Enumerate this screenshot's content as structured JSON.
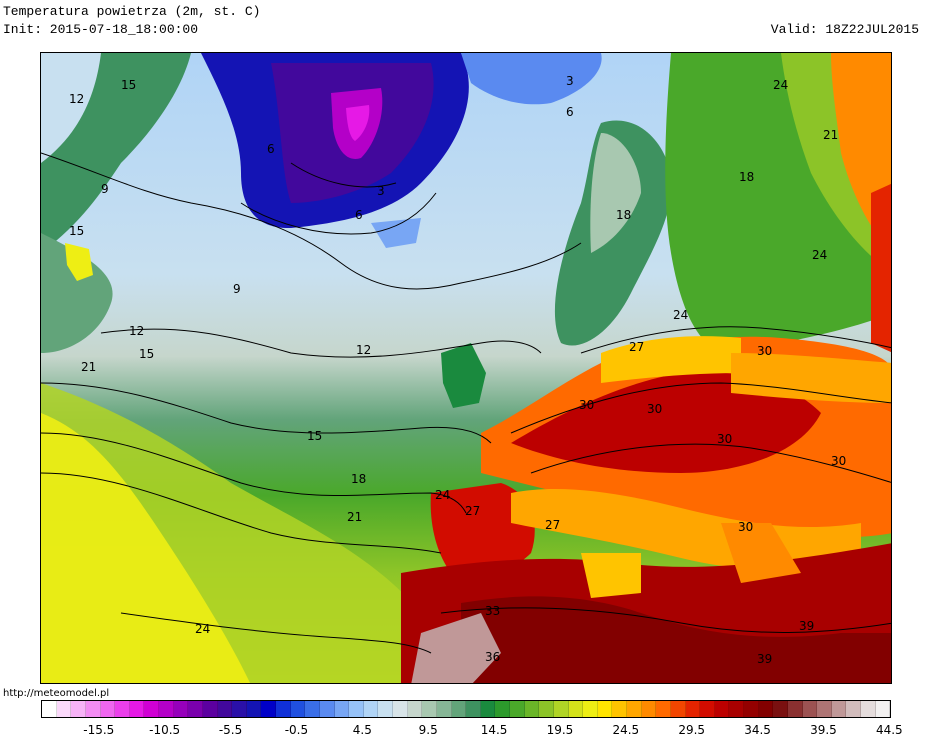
{
  "header": {
    "title": "Temperatura powietrza (2m, st. C)",
    "init": "Init: 2015-07-18_18:00:00",
    "valid": "Valid: 18Z22JUL2015"
  },
  "footer": {
    "url": "http://meteomodel.pl"
  },
  "legend": {
    "tick_labels": [
      "-15.5",
      "-10.5",
      "-5.5",
      "-0.5",
      "4.5",
      "9.5",
      "14.5",
      "19.5",
      "24.5",
      "29.5",
      "34.5",
      "39.5",
      "44.5"
    ],
    "colors": [
      "#ffffff",
      "#fbd9fb",
      "#f7b3f7",
      "#f38cf3",
      "#ef66ef",
      "#eb3feb",
      "#e619e6",
      "#d000d4",
      "#b400c8",
      "#9600bb",
      "#7a00ad",
      "#5c00a0",
      "#42089c",
      "#2a10a8",
      "#1414b4",
      "#0000c8",
      "#1030d8",
      "#2050e0",
      "#3a6ee8",
      "#5a8af0",
      "#78a6f4",
      "#96c2f8",
      "#b0d4f6",
      "#c8e0f0",
      "#d8e4e8",
      "#c6d6cc",
      "#a8c8b0",
      "#86b696",
      "#62a47a",
      "#3e9260",
      "#1a8a3e",
      "#2c9a2c",
      "#4aa82a",
      "#6ab628",
      "#8cc428",
      "#b0d426",
      "#d4e21a",
      "#eeee14",
      "#ffe400",
      "#ffc400",
      "#ffa600",
      "#ff8a00",
      "#ff6a00",
      "#f24600",
      "#e42400",
      "#d20c00",
      "#bc0000",
      "#a80000",
      "#940000",
      "#820000",
      "#7a1010",
      "#8a3030",
      "#9c5252",
      "#ae7474",
      "#c09898",
      "#d2bcbc",
      "#e4dcdc",
      "#f2f0f0"
    ]
  },
  "map": {
    "contour_labels": [
      {
        "text": "12",
        "region": "southwest Greenland coast"
      },
      {
        "text": "15",
        "region": "southern tip of Greenland"
      },
      {
        "text": "9",
        "region": "Labrador Sea"
      },
      {
        "text": "15",
        "region": "Newfoundland"
      },
      {
        "text": "6",
        "region": "East Greenland"
      },
      {
        "text": "3",
        "region": "Greenland ice sheet"
      },
      {
        "text": "6",
        "region": "Denmark Strait"
      },
      {
        "text": "3",
        "region": "Svalbard"
      },
      {
        "text": "6",
        "region": "Barents Sea"
      },
      {
        "text": "9",
        "region": "central North Atlantic"
      },
      {
        "text": "12",
        "region": "west of Newfoundland"
      },
      {
        "text": "15",
        "region": "off Nova Scotia"
      },
      {
        "text": "21",
        "region": "east of Cape Cod"
      },
      {
        "text": "12",
        "region": "west of Ireland"
      },
      {
        "text": "15",
        "region": "mid-Atlantic"
      },
      {
        "text": "18",
        "region": "Azores north"
      },
      {
        "text": "21",
        "region": "Azores"
      },
      {
        "text": "24",
        "region": "subtropical Atlantic"
      },
      {
        "text": "18",
        "region": "Finland"
      },
      {
        "text": "18",
        "region": "Sweden"
      },
      {
        "text": "21",
        "region": "Russia north"
      },
      {
        "text": "24",
        "region": "Russia"
      },
      {
        "text": "24",
        "region": "Russia east"
      },
      {
        "text": "24",
        "region": "Poland"
      },
      {
        "text": "27",
        "region": "Germany"
      },
      {
        "text": "30",
        "region": "Ukraine"
      },
      {
        "text": "30",
        "region": "France"
      },
      {
        "text": "30",
        "region": "Italy"
      },
      {
        "text": "30",
        "region": "Balkans"
      },
      {
        "text": "30",
        "region": "Turkey"
      },
      {
        "text": "27",
        "region": "Bay of Biscay coast"
      },
      {
        "text": "27",
        "region": "Balearic Sea"
      },
      {
        "text": "24",
        "region": "Portugal coast"
      },
      {
        "text": "30",
        "region": "Greece"
      },
      {
        "text": "33",
        "region": "Morocco"
      },
      {
        "text": "36",
        "region": "Algeria"
      },
      {
        "text": "39",
        "region": "Libya"
      },
      {
        "text": "39",
        "region": "Egypt"
      }
    ]
  }
}
